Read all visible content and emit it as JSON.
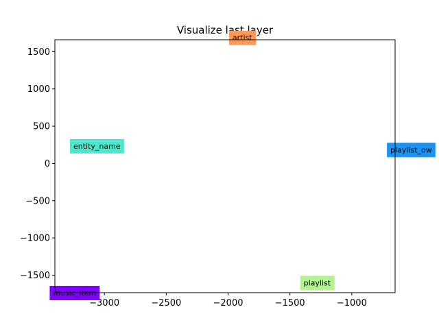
{
  "chart_data": {
    "type": "scatter",
    "title": "Visualize last layer",
    "xlabel": "",
    "ylabel": "",
    "xlim": [
      -3400,
      -650
    ],
    "ylim": [
      -1735,
      1660
    ],
    "x_ticks": [
      -3000,
      -2500,
      -2000,
      -1500,
      -1000
    ],
    "y_ticks": [
      1500,
      1000,
      500,
      0,
      -500,
      -1000,
      -1500
    ],
    "x_tick_labels": [
      "−3000",
      "−2500",
      "−2000",
      "−1500",
      "−1000"
    ],
    "y_tick_labels": [
      "1500",
      "1000",
      "500",
      "0",
      "−500",
      "−1000",
      "−1500"
    ],
    "grid": false,
    "points": [
      {
        "label": "artist",
        "x": -1885,
        "y": 1690,
        "color": "#ff9955"
      },
      {
        "label": "entity_name",
        "x": -3060,
        "y": 235,
        "color": "#4ee7cd"
      },
      {
        "label": "playlist_ow",
        "x": -520,
        "y": 185,
        "color": "#1c92f1"
      },
      {
        "label": "playlist",
        "x": -1280,
        "y": -1600,
        "color": "#b4f394"
      },
      {
        "label": "music_item",
        "x": -3240,
        "y": -1735,
        "color": "#8000ff"
      }
    ]
  }
}
